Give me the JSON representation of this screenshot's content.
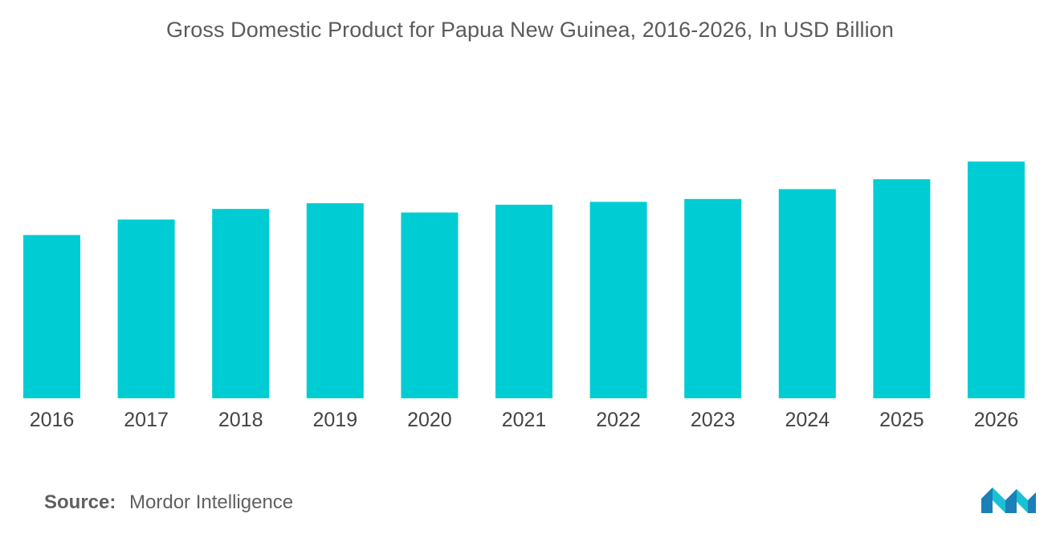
{
  "title": "Gross Domestic Product for Papua New Guinea, 2016-2026, In USD Billion",
  "source": {
    "label": "Source:",
    "text": "Mordor Intelligence"
  },
  "logo": {
    "icon": "mordor-intelligence-logo",
    "colors": [
      "#1b7fb8",
      "#18c2d4"
    ]
  },
  "colors": {
    "bar": "#00cdd3"
  },
  "chart_data": {
    "type": "bar",
    "title": "Gross Domestic Product for Papua New Guinea, 2016-2026, In USD Billion",
    "xlabel": "",
    "ylabel": "",
    "categories": [
      "2016",
      "2017",
      "2018",
      "2019",
      "2020",
      "2021",
      "2022",
      "2023",
      "2024",
      "2025",
      "2026"
    ],
    "values": [
      23.1,
      25.3,
      26.8,
      27.6,
      26.3,
      27.4,
      27.8,
      28.2,
      29.6,
      31.0,
      33.5
    ],
    "ylim": [
      0,
      45
    ],
    "grid": false,
    "legend": "none",
    "value_labels_shown": false
  }
}
